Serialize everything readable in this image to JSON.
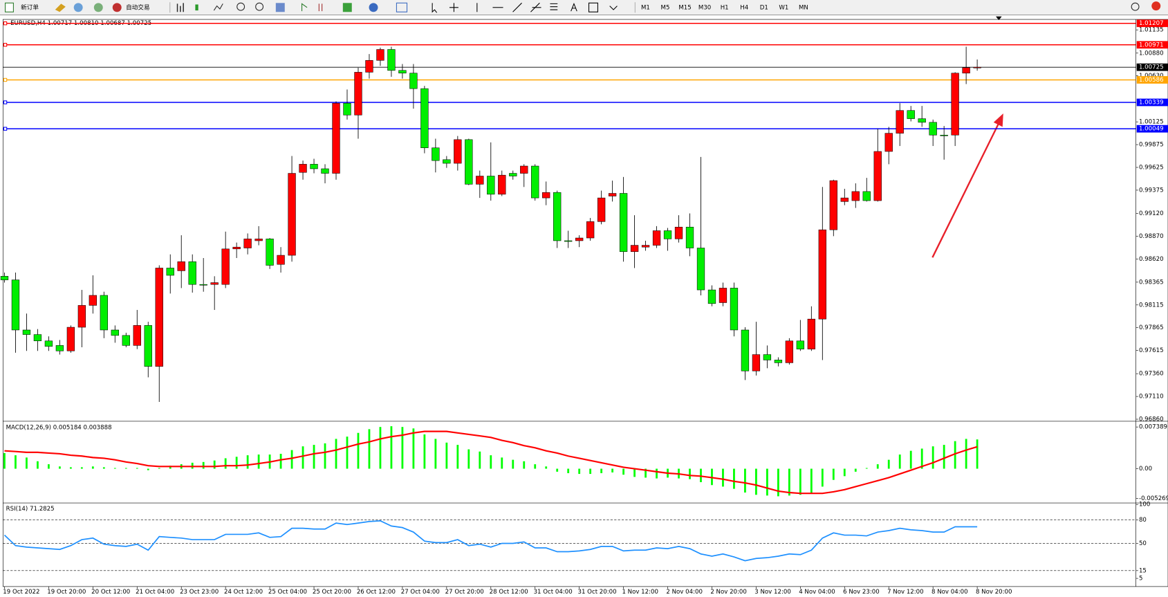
{
  "toolbar": {
    "new_order": "新订单",
    "auto_trading": "自动交易",
    "timeframes": [
      "M1",
      "M5",
      "M15",
      "M30",
      "H1",
      "H4",
      "D1",
      "W1",
      "MN"
    ]
  },
  "chart_data": [
    {
      "type": "candlestick",
      "title": "EURUSD,H4  1.00717 1.00810 1.00687 1.00725",
      "up_color": "#ff0000",
      "down_color": "#00ee00",
      "grid": false,
      "ylim": [
        0.9685,
        1.0125
      ],
      "yticks": [
        1.01135,
        {
          "value": 1.0088,
          "label": "1.00880"
        },
        {
          "value": 1.0063,
          "label": "1.00630"
        },
        1.00125,
        0.99875,
        0.99625,
        0.99375,
        {
          "value": 0.9912,
          "label": "0.99120"
        },
        {
          "value": 0.9887,
          "label": "0.98870"
        },
        {
          "value": 0.9862,
          "label": "0.98620"
        },
        0.98365,
        0.98115,
        0.97865,
        0.97615,
        {
          "value": 0.9736,
          "label": "0.97360"
        },
        {
          "value": 0.9711,
          "label": "0.97110"
        },
        {
          "value": 0.9686,
          "label": "0.96860"
        }
      ],
      "lines": [
        {
          "value": 1.01207,
          "color": "#ff0000"
        },
        {
          "value": 1.00971,
          "color": "#ff0000"
        },
        {
          "value": 1.00586,
          "color": "#ffa500"
        },
        {
          "value": 1.00339,
          "color": "#0000ff"
        },
        {
          "value": 1.00049,
          "color": "#0000ff"
        },
        {
          "value": 1.00725,
          "color": "#000000"
        }
      ],
      "categories": [
        "19 Oct 2022",
        null,
        null,
        null,
        "19 Oct 20:00",
        null,
        null,
        null,
        "20 Oct 12:00",
        null,
        null,
        null,
        "21 Oct 04:00",
        null,
        null,
        null,
        "23 Oct 23:00",
        null,
        null,
        null,
        "24 Oct 12:00",
        null,
        null,
        null,
        "25 Oct 04:00",
        null,
        null,
        null,
        "25 Oct 20:00",
        null,
        null,
        null,
        "26 Oct 12:00",
        null,
        null,
        null,
        "27 Oct 04:00",
        null,
        null,
        null,
        "27 Oct 20:00",
        null,
        null,
        null,
        "28 Oct 12:00",
        null,
        null,
        null,
        "31 Oct 04:00",
        null,
        null,
        null,
        "31 Oct 20:00",
        null,
        null,
        null,
        "1 Nov 12:00",
        null,
        null,
        null,
        "2 Nov 04:00",
        null,
        null,
        null,
        "2 Nov 20:00",
        null,
        null,
        null,
        "3 Nov 12:00",
        null,
        null,
        null,
        "4 Nov 04:00",
        null,
        null,
        null,
        "6 Nov 23:00",
        null,
        null,
        null,
        "7 Nov 12:00",
        null,
        null,
        null,
        "8 Nov 04:00",
        null,
        null,
        null,
        "8 Nov 20:00"
      ],
      "ohlc": [
        [
          0.9843,
          0.9847,
          0.9836,
          0.9839
        ],
        [
          0.9839,
          0.9847,
          0.9759,
          0.9784
        ],
        [
          0.9784,
          0.9802,
          0.9761,
          0.9779
        ],
        [
          0.9779,
          0.9785,
          0.9761,
          0.9772
        ],
        [
          0.9772,
          0.9777,
          0.9761,
          0.9766
        ],
        [
          0.9767,
          0.9773,
          0.9757,
          0.9761
        ],
        [
          0.9761,
          0.9789,
          0.9759,
          0.9787
        ],
        [
          0.9787,
          0.9828,
          0.9765,
          0.9811
        ],
        [
          0.9811,
          0.9844,
          0.9802,
          0.9822
        ],
        [
          0.9822,
          0.9826,
          0.9775,
          0.9784
        ],
        [
          0.9784,
          0.9789,
          0.977,
          0.9778
        ],
        [
          0.9778,
          0.9781,
          0.9765,
          0.9767
        ],
        [
          0.9767,
          0.9806,
          0.9763,
          0.9789
        ],
        [
          0.9789,
          0.9793,
          0.9732,
          0.9744
        ],
        [
          0.9744,
          0.9855,
          0.9705,
          0.9852
        ],
        [
          0.9852,
          0.9867,
          0.9824,
          0.9844
        ],
        [
          0.9849,
          0.9888,
          0.983,
          0.9859
        ],
        [
          0.9859,
          0.9867,
          0.9825,
          0.9834
        ],
        [
          0.9834,
          0.9863,
          0.9826,
          0.9834
        ],
        [
          0.9834,
          0.9843,
          0.9806,
          0.9836
        ],
        [
          0.9834,
          0.9892,
          0.983,
          0.9873
        ],
        [
          0.9873,
          0.988,
          0.9863,
          0.9875
        ],
        [
          0.9874,
          0.989,
          0.9867,
          0.9884
        ],
        [
          0.9882,
          0.9898,
          0.9877,
          0.9884
        ],
        [
          0.9884,
          0.9885,
          0.9851,
          0.9855
        ],
        [
          0.9856,
          0.9875,
          0.9847,
          0.9866
        ],
        [
          0.9866,
          0.9975,
          0.9859,
          0.9956
        ],
        [
          0.9957,
          0.997,
          0.9949,
          0.9966
        ],
        [
          0.9966,
          0.9972,
          0.9956,
          0.9961
        ],
        [
          0.9961,
          0.9966,
          0.9945,
          0.9956
        ],
        [
          0.9956,
          1.0035,
          0.9949,
          1.0033
        ],
        [
          1.0033,
          1.0048,
          1.0015,
          1.002
        ],
        [
          1.002,
          1.0072,
          0.9994,
          1.0067
        ],
        [
          1.0067,
          1.0087,
          1.006,
          1.008
        ],
        [
          1.008,
          1.0094,
          1.0074,
          1.0092
        ],
        [
          1.0092,
          1.0095,
          1.0062,
          1.0069
        ],
        [
          1.0069,
          1.0076,
          1.006,
          1.0066
        ],
        [
          1.0066,
          1.0076,
          1.0027,
          1.0049
        ],
        [
          1.0049,
          1.0052,
          0.9978,
          0.9984
        ],
        [
          0.9984,
          0.9994,
          0.9957,
          0.997
        ],
        [
          0.9971,
          0.9975,
          0.9962,
          0.9967
        ],
        [
          0.9967,
          0.9997,
          0.9959,
          0.9993
        ],
        [
          0.9993,
          0.9994,
          0.9943,
          0.9944
        ],
        [
          0.9944,
          0.9959,
          0.9929,
          0.9953
        ],
        [
          0.9953,
          0.999,
          0.9926,
          0.9933
        ],
        [
          0.9933,
          0.9959,
          0.9931,
          0.9954
        ],
        [
          0.9956,
          0.9959,
          0.9949,
          0.9953
        ],
        [
          0.9956,
          0.9966,
          0.9941,
          0.9964
        ],
        [
          0.9964,
          0.9966,
          0.9926,
          0.9929
        ],
        [
          0.9929,
          0.9947,
          0.9921,
          0.9935
        ],
        [
          0.9935,
          0.9937,
          0.9874,
          0.9882
        ],
        [
          0.9882,
          0.9893,
          0.9874,
          0.9882
        ],
        [
          0.9882,
          0.9888,
          0.9875,
          0.9885
        ],
        [
          0.9885,
          0.9907,
          0.9882,
          0.9903
        ],
        [
          0.9903,
          0.9937,
          0.99,
          0.9929
        ],
        [
          0.9931,
          0.9948,
          0.9925,
          0.9934
        ],
        [
          0.9934,
          0.9952,
          0.9859,
          0.987
        ],
        [
          0.987,
          0.991,
          0.9852,
          0.9877
        ],
        [
          0.9875,
          0.9882,
          0.9871,
          0.9877
        ],
        [
          0.9877,
          0.9898,
          0.9874,
          0.9893
        ],
        [
          0.9893,
          0.9896,
          0.9871,
          0.9884
        ],
        [
          0.9884,
          0.991,
          0.988,
          0.9897
        ],
        [
          0.9897,
          0.9912,
          0.9865,
          0.9874
        ],
        [
          0.9874,
          0.9974,
          0.9822,
          0.9828
        ],
        [
          0.9828,
          0.9833,
          0.981,
          0.9813
        ],
        [
          0.9814,
          0.9836,
          0.981,
          0.983
        ],
        [
          0.983,
          0.9836,
          0.9777,
          0.9784
        ],
        [
          0.9784,
          0.9787,
          0.9729,
          0.9739
        ],
        [
          0.9739,
          0.9793,
          0.9734,
          0.9757
        ],
        [
          0.9757,
          0.9767,
          0.9742,
          0.9751
        ],
        [
          0.9751,
          0.9754,
          0.9744,
          0.9748
        ],
        [
          0.9748,
          0.9775,
          0.9746,
          0.9772
        ],
        [
          0.9772,
          0.9795,
          0.9761,
          0.9763
        ],
        [
          0.9763,
          0.981,
          0.9761,
          0.9796
        ],
        [
          0.9796,
          0.9941,
          0.9751,
          0.9894
        ],
        [
          0.9894,
          0.9949,
          0.9887,
          0.9948
        ],
        [
          0.9925,
          0.9939,
          0.9921,
          0.9929
        ],
        [
          0.9926,
          0.9945,
          0.9918,
          0.9936
        ],
        [
          0.9936,
          0.9951,
          0.9925,
          0.9926
        ],
        [
          0.9926,
          1.0005,
          0.9925,
          0.998
        ],
        [
          0.998,
          1.0007,
          0.9966,
          1.0
        ],
        [
          1.0,
          1.0033,
          0.9986,
          1.0025
        ],
        [
          1.0025,
          1.003,
          1.0013,
          1.0016
        ],
        [
          1.0016,
          1.003,
          1.0007,
          1.0012
        ],
        [
          1.0012,
          1.0015,
          0.9986,
          0.9998
        ],
        [
          0.9998,
          1.0008,
          0.9971,
          0.9998
        ],
        [
          0.9998,
          1.0067,
          0.9986,
          1.0066
        ],
        [
          1.0066,
          1.0095,
          1.0054,
          1.0072
        ],
        [
          1.00717,
          1.0081,
          1.00687,
          1.00725
        ]
      ]
    },
    {
      "type": "macd",
      "title": "MACD(12,26,9) 0.005184 0.003888",
      "ylim": [
        -0.0058,
        0.0082
      ],
      "yticks": [
        0.007389,
        {
          "value": 0,
          "label": "0.00"
        },
        -0.005269
      ],
      "series": [
        {
          "type": "bar",
          "color": "#00ff00",
          "values": [
            0.00277,
            0.00238,
            0.00198,
            0.00132,
            0.00079,
            0.0004,
            0.00026,
            0.00026,
            0.0004,
            0.00026,
            0.00013,
            0.00013,
            0.00013,
            -0.00026,
            0.00013,
            0.00053,
            0.00079,
            0.00106,
            0.00119,
            0.00145,
            0.00185,
            0.00211,
            0.00238,
            0.00251,
            0.00251,
            0.00264,
            0.0033,
            0.00396,
            0.00422,
            0.00449,
            0.00528,
            0.00568,
            0.00634,
            0.007,
            0.00739,
            0.00752,
            0.00739,
            0.00713,
            0.00607,
            0.00528,
            0.00462,
            0.00422,
            0.00343,
            0.00304,
            0.00238,
            0.00198,
            0.00158,
            0.00132,
            0.00079,
            0.0004,
            -0.00053,
            -0.00079,
            -0.00092,
            -0.00092,
            -0.00079,
            -0.00066,
            -0.00106,
            -0.00145,
            -0.00158,
            -0.00172,
            -0.00158,
            -0.00172,
            -0.00185,
            -0.00238,
            -0.0029,
            -0.00317,
            -0.00356,
            -0.00422,
            -0.00462,
            -0.00475,
            -0.00488,
            -0.00475,
            -0.00462,
            -0.00436,
            -0.00317,
            -0.00198,
            -0.00132,
            -0.00053,
            0.00013,
            0.00079,
            0.00158,
            0.00251,
            0.00317,
            0.00356,
            0.00396,
            0.00422,
            0.00488,
            0.00528,
            0.005184
          ]
        },
        {
          "type": "line",
          "color": "#ff0000",
          "values": [
            0.00317,
            0.00304,
            0.0029,
            0.0029,
            0.00277,
            0.00264,
            0.00238,
            0.00224,
            0.00198,
            0.00185,
            0.00158,
            0.00119,
            0.00092,
            0.00053,
            0.0004,
            0.0004,
            0.0004,
            0.0004,
            0.0004,
            0.0004,
            0.00053,
            0.00053,
            0.00066,
            0.00092,
            0.00119,
            0.00158,
            0.00185,
            0.00224,
            0.00264,
            0.0029,
            0.0033,
            0.00383,
            0.00436,
            0.00475,
            0.00528,
            0.00568,
            0.00594,
            0.00634,
            0.0066,
            0.0066,
            0.0066,
            0.00634,
            0.00607,
            0.00581,
            0.00554,
            0.00502,
            0.00462,
            0.00409,
            0.0037,
            0.00317,
            0.00277,
            0.00224,
            0.00185,
            0.00145,
            0.00106,
            0.00066,
            0.00026,
            0,
            -0.00026,
            -0.00053,
            -0.00079,
            -0.00092,
            -0.00119,
            -0.00132,
            -0.00158,
            -0.00185,
            -0.00224,
            -0.00251,
            -0.0029,
            -0.00343,
            -0.00396,
            -0.00422,
            -0.00436,
            -0.00436,
            -0.00436,
            -0.00409,
            -0.0037,
            -0.00317,
            -0.00264,
            -0.00211,
            -0.00158,
            -0.00092,
            -0.00026,
            0.0004,
            0.00106,
            0.00185,
            0.00264,
            0.0033,
            0.003888
          ]
        }
      ]
    },
    {
      "type": "line",
      "title": "RSI(14) 71.2825",
      "ylim": [
        -5.5,
        100
      ],
      "yticks": [
        100,
        80,
        50,
        15,
        5
      ],
      "levels": [
        80,
        50,
        15
      ],
      "series": [
        {
          "color": "#1e90ff",
          "values": [
            60.6,
            47.1,
            45.2,
            44.2,
            43.2,
            42.2,
            47.1,
            54.8,
            56.8,
            49.0,
            47.1,
            46.1,
            49.0,
            41.3,
            58.7,
            57.7,
            56.8,
            54.8,
            54.8,
            54.8,
            61.6,
            61.6,
            61.6,
            63.5,
            57.7,
            58.7,
            69.4,
            69.4,
            68.4,
            68.4,
            76.1,
            74.2,
            76.1,
            78.1,
            79.0,
            72.3,
            70.3,
            64.5,
            52.9,
            51.0,
            51.0,
            54.8,
            47.1,
            49.0,
            45.2,
            50.0,
            50.0,
            51.9,
            44.2,
            44.2,
            39.3,
            39.3,
            40.3,
            42.2,
            46.1,
            46.1,
            40.3,
            41.3,
            41.3,
            44.2,
            43.2,
            46.1,
            43.2,
            36.4,
            33.5,
            36.4,
            32.6,
            27.7,
            30.6,
            31.6,
            33.5,
            36.4,
            35.5,
            41.3,
            56.8,
            63.5,
            60.6,
            60.6,
            59.6,
            64.5,
            66.4,
            69.4,
            67.4,
            66.4,
            64.5,
            64.5,
            71.3,
            71.3,
            71.2825
          ]
        }
      ]
    }
  ]
}
